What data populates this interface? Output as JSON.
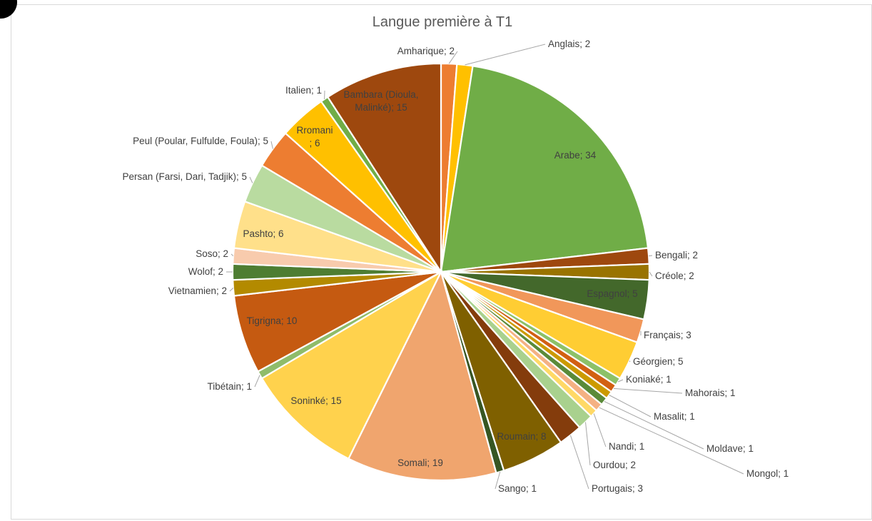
{
  "chart_data": {
    "type": "pie",
    "title": "Langue première à T1",
    "slices": [
      {
        "label": "Amharique",
        "value": 2,
        "color": "#ed7d31",
        "text": "Amharique; 2"
      },
      {
        "label": "Anglais",
        "value": 2,
        "color": "#ffc000",
        "text": "Anglais; 2"
      },
      {
        "label": "Arabe",
        "value": 34,
        "color": "#70ad47",
        "text": "Arabe; 34"
      },
      {
        "label": "Bengali",
        "value": 2,
        "color": "#9e480e",
        "text": "Bengali; 2"
      },
      {
        "label": "Créole",
        "value": 2,
        "color": "#997300",
        "text": "Créole; 2"
      },
      {
        "label": "Espagnol",
        "value": 5,
        "color": "#43682b",
        "text": "Espagnol; 5"
      },
      {
        "label": "Français",
        "value": 3,
        "color": "#f1975a",
        "text": "Français; 3"
      },
      {
        "label": "Géorgien",
        "value": 5,
        "color": "#ffcd33",
        "text": "Géorgien; 5"
      },
      {
        "label": "Koniaké",
        "value": 1,
        "color": "#8cc168",
        "text": "Koniaké; 1"
      },
      {
        "label": "Mahorais",
        "value": 1,
        "color": "#d26012",
        "text": "Mahorais; 1"
      },
      {
        "label": "Masalit",
        "value": 1,
        "color": "#cc9a00",
        "text": "Masalit; 1"
      },
      {
        "label": "Moldave",
        "value": 1,
        "color": "#5a8a39",
        "text": "Moldave; 1"
      },
      {
        "label": "Mongol",
        "value": 1,
        "color": "#f4b183",
        "text": "Mongol; 1"
      },
      {
        "label": "Nandi",
        "value": 1,
        "color": "#ffd966",
        "text": "Nandi; 1"
      },
      {
        "label": "Ourdou",
        "value": 2,
        "color": "#a9d18e",
        "text": "Ourdou; 2"
      },
      {
        "label": "Portugais",
        "value": 3,
        "color": "#843c0c",
        "text": "Portugais; 3"
      },
      {
        "label": "Roumain",
        "value": 8,
        "color": "#7f6000",
        "text": "Roumain; 8"
      },
      {
        "label": "Sango",
        "value": 1,
        "color": "#375623",
        "text": "Sango; 1"
      },
      {
        "label": "Somali",
        "value": 19,
        "color": "#f0a56e",
        "text": "Somali; 19"
      },
      {
        "label": "Soninké",
        "value": 15,
        "color": "#ffd24d",
        "text": "Soninké; 15"
      },
      {
        "label": "Tibétain",
        "value": 1,
        "color": "#8fbc6a",
        "text": "Tibétain; 1"
      },
      {
        "label": "Tigrigna",
        "value": 10,
        "color": "#c55a11",
        "text": "Tigrigna; 10"
      },
      {
        "label": "Vietnamien",
        "value": 2,
        "color": "#b38a00",
        "text": "Vietnamien; 2"
      },
      {
        "label": "Wolof",
        "value": 2,
        "color": "#4e7d32",
        "text": "Wolof; 2"
      },
      {
        "label": "Soso",
        "value": 2,
        "color": "#f8cbad",
        "text": "Soso; 2"
      },
      {
        "label": "Pashto",
        "value": 6,
        "color": "#ffe08a",
        "text": "Pashto; 6"
      },
      {
        "label": "Persan (Farsi, Dari, Tadjik)",
        "value": 5,
        "color": "#b9dba0",
        "text": "Persan (Farsi, Dari, Tadjik); 5"
      },
      {
        "label": "Peul (Poular, Fulfulde, Foula)",
        "value": 5,
        "color": "#ed7d31",
        "text": "Peul (Poular, Fulfulde, Foula); 5"
      },
      {
        "label": "Rromani",
        "value": 6,
        "color": "#ffc000",
        "text": "Rromani\n; 6"
      },
      {
        "label": "Italien",
        "value": 1,
        "color": "#70ad47",
        "text": "Italien; 1"
      },
      {
        "label": "Bambara (Dioula, Malinké)",
        "value": 15,
        "color": "#9e480e",
        "text": "Bambara (Dioula,\nMalinké); 15"
      }
    ],
    "legend": "none"
  }
}
